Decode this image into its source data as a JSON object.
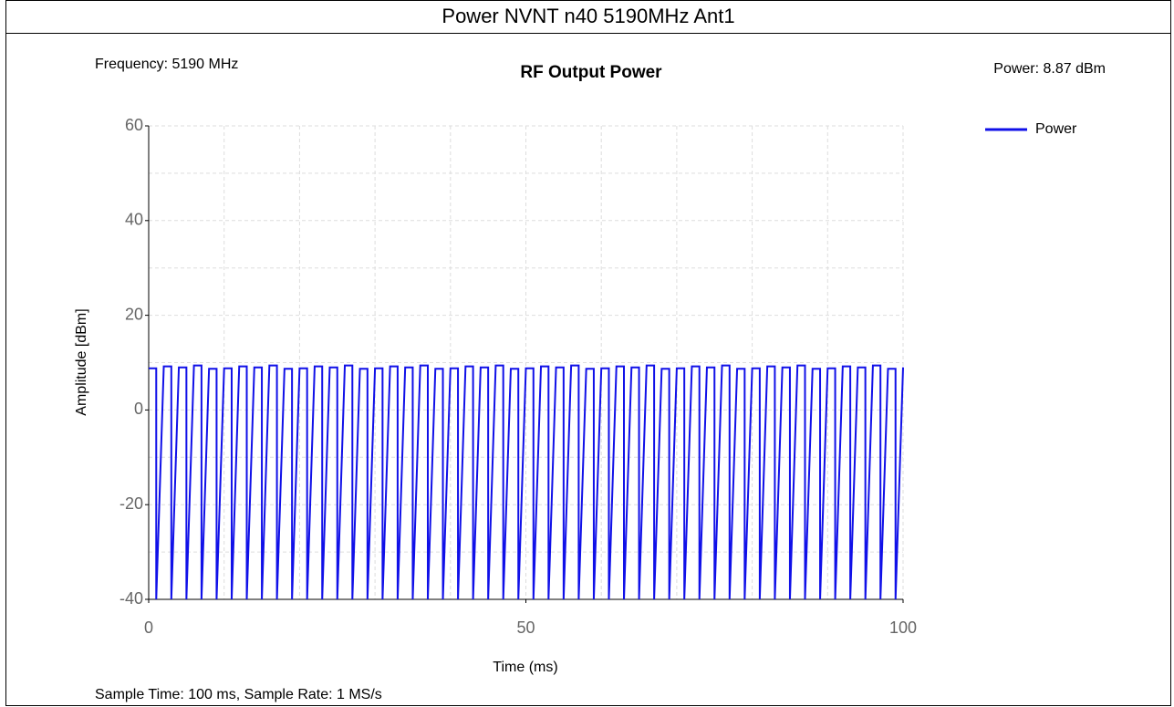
{
  "chart_data": {
    "type": "line",
    "header": "Power NVNT n40 5190MHz Ant1",
    "title": "RF Output Power",
    "annotations": {
      "frequency": "Frequency: 5190 MHz",
      "power": "Power: 8.87 dBm",
      "footer": "Sample Time: 100 ms,  Sample Rate: 1 MS/s"
    },
    "x_label": "Time (ms)",
    "y_label": "Amplitude [dBm]",
    "xlim": [
      0,
      100
    ],
    "ylim": [
      -40,
      60
    ],
    "xticks": [
      0,
      50,
      100
    ],
    "yticks": [
      -40,
      -20,
      0,
      20,
      40,
      60
    ],
    "xgrid": [
      10,
      20,
      30,
      40,
      50,
      60,
      70,
      80,
      90,
      100
    ],
    "ygrid": [
      -30,
      -20,
      -10,
      0,
      10,
      20,
      30,
      40,
      50,
      60
    ],
    "grid": true,
    "legend": "top-right",
    "x": [
      0,
      1,
      1,
      2,
      3,
      3,
      4,
      5,
      5,
      6,
      7,
      7,
      8,
      9,
      9,
      10,
      11,
      11,
      12,
      13,
      13,
      14,
      15,
      15,
      16,
      17,
      17,
      18,
      19,
      19,
      20,
      21,
      21,
      22,
      23,
      23,
      24,
      25,
      25,
      26,
      27,
      27,
      28,
      29,
      29,
      30,
      31,
      31,
      32,
      33,
      33,
      34,
      35,
      35,
      36,
      37,
      37,
      38,
      39,
      39,
      40,
      41,
      41,
      42,
      43,
      43,
      44,
      45,
      45,
      46,
      47,
      47,
      48,
      49,
      49,
      50,
      51,
      51,
      52,
      53,
      53,
      54,
      55,
      55,
      56,
      57,
      57,
      58,
      59,
      59,
      60,
      61,
      61,
      62,
      63,
      63,
      64,
      65,
      65,
      66,
      67,
      67,
      68,
      69,
      69,
      70,
      71,
      71,
      72,
      73,
      73,
      74,
      75,
      75,
      76,
      77,
      77,
      78,
      79,
      79,
      80,
      81,
      81,
      82,
      83,
      83,
      84,
      85,
      85,
      86,
      87,
      87,
      88,
      89,
      89,
      90,
      91,
      91,
      92,
      93,
      93,
      94,
      95,
      95,
      96,
      97,
      97,
      98,
      99,
      99,
      100
    ],
    "series": [
      {
        "name": "Power",
        "color": "#1010e8",
        "values": [
          8.8,
          8.8,
          -40,
          9.2,
          9.2,
          -40,
          9,
          9,
          -40,
          9.4,
          9.4,
          -40,
          8.7,
          8.7,
          -40,
          8.8,
          8.8,
          -40,
          9.2,
          9.2,
          -40,
          9,
          9,
          -40,
          9.4,
          9.4,
          -40,
          8.7,
          8.7,
          -40,
          8.8,
          8.8,
          -40,
          9.2,
          9.2,
          -40,
          9,
          9,
          -40,
          9.4,
          9.4,
          -40,
          8.7,
          8.7,
          -40,
          8.8,
          8.8,
          -40,
          9.2,
          9.2,
          -40,
          9,
          9,
          -40,
          9.4,
          9.4,
          -40,
          8.7,
          8.7,
          -40,
          8.8,
          8.8,
          -40,
          9.2,
          9.2,
          -40,
          9,
          9,
          -40,
          9.4,
          9.4,
          -40,
          8.7,
          8.7,
          -40,
          8.8,
          8.8,
          -40,
          9.2,
          9.2,
          -40,
          9,
          9,
          -40,
          9.4,
          9.4,
          -40,
          8.7,
          8.7,
          -40,
          8.8,
          8.8,
          -40,
          9.2,
          9.2,
          -40,
          9,
          9,
          -40,
          9.4,
          9.4,
          -40,
          8.7,
          8.7,
          -40,
          8.8,
          8.8,
          -40,
          9.2,
          9.2,
          -40,
          9,
          9,
          -40,
          9.4,
          9.4,
          -40,
          8.7,
          8.7,
          -40,
          8.8,
          8.8,
          -40,
          9.2,
          9.2,
          -40,
          9,
          9,
          -40,
          9.4,
          9.4,
          -40,
          8.7,
          8.7,
          -40,
          8.8,
          8.8,
          -40,
          9.2,
          9.2,
          -40,
          9,
          9,
          -40,
          9.4,
          9.4,
          -40,
          8.7,
          8.7,
          -40,
          9
        ]
      }
    ]
  }
}
